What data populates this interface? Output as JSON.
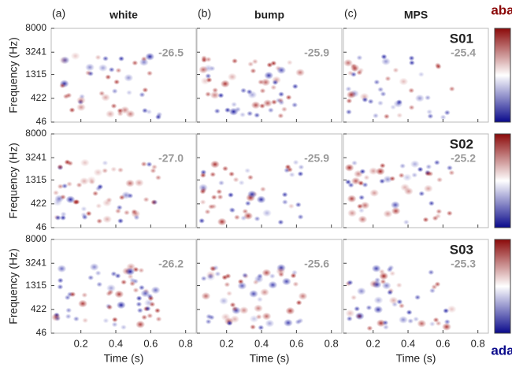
{
  "panel_labels": [
    "(a)",
    "(b)",
    "(c)"
  ],
  "conditions": [
    "white",
    "bump",
    "MPS"
  ],
  "subjects": [
    "S01",
    "S02",
    "S03"
  ],
  "scores": [
    [
      -26.5,
      -25.9,
      -25.4
    ],
    [
      {
        "value": -27,
        "label": "-27.0"
      },
      -25.9,
      -25.2
    ],
    [
      -26.2,
      -25.6,
      -25.3
    ]
  ],
  "y_axis": {
    "label": "Frequency (Hz)",
    "ticks": [
      8000,
      3241,
      1315,
      422,
      46
    ],
    "scale": "erb",
    "lim": [
      46,
      8000
    ]
  },
  "x_axis": {
    "label": "Time (s)",
    "ticks": [
      0.2,
      0.4,
      0.6,
      0.8
    ],
    "lim": [
      0.03,
      0.86
    ]
  },
  "colorbar": {
    "top_label": "aba",
    "bottom_label": "ada",
    "colors": [
      "#8b0a0a",
      "#ffffff",
      "#0a0a8b"
    ]
  }
}
